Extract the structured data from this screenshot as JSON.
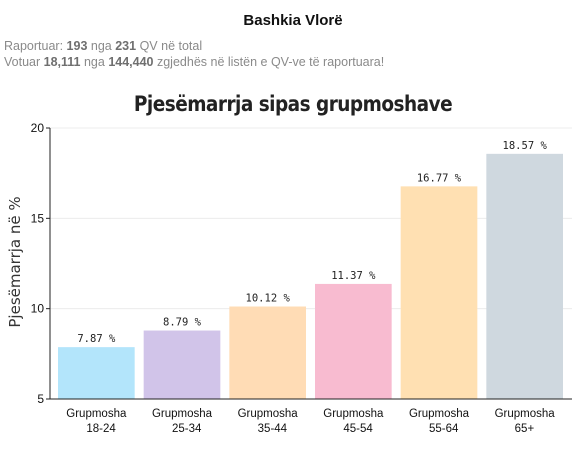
{
  "header": {
    "title": "Bashkia Vlorë"
  },
  "stats": {
    "reported_prefix": "Raportuar:",
    "reported_count": "193",
    "reported_mid": "nga",
    "reported_total": "231",
    "reported_suffix": "QV në total",
    "voted_prefix": "Votuar",
    "voted_count": "18,111",
    "voted_mid": "nga",
    "voted_total": "144,440",
    "voted_suffix": "zgjedhës në listën e QV-ve të raportuara!"
  },
  "chart_data": {
    "type": "bar",
    "title": "Pjesëmarrja sipas grupmoshave",
    "ylabel": "Pjesëmarrja në %",
    "xlabel": "",
    "ylim": [
      5,
      20
    ],
    "yticks": [
      5,
      10,
      15,
      20
    ],
    "grid": true,
    "categories": [
      [
        "Grupmosha",
        "18-24"
      ],
      [
        "Grupmosha",
        "25-34"
      ],
      [
        "Grupmosha",
        "35-44"
      ],
      [
        "Grupmosha",
        "45-54"
      ],
      [
        "Grupmosha",
        "55-64"
      ],
      [
        "Grupmosha",
        "65+"
      ]
    ],
    "values": [
      7.87,
      8.79,
      10.12,
      11.37,
      16.77,
      18.57
    ],
    "data_labels": [
      "7.87 %",
      "8.79 %",
      "10.12 %",
      "11.37 %",
      "16.77 %",
      "18.57 %"
    ],
    "colors": [
      "#b3e5fb",
      "#d1c4e9",
      "#ffdcb5",
      "#f8bbd0",
      "#ffe0b2",
      "#cfd8df"
    ]
  }
}
